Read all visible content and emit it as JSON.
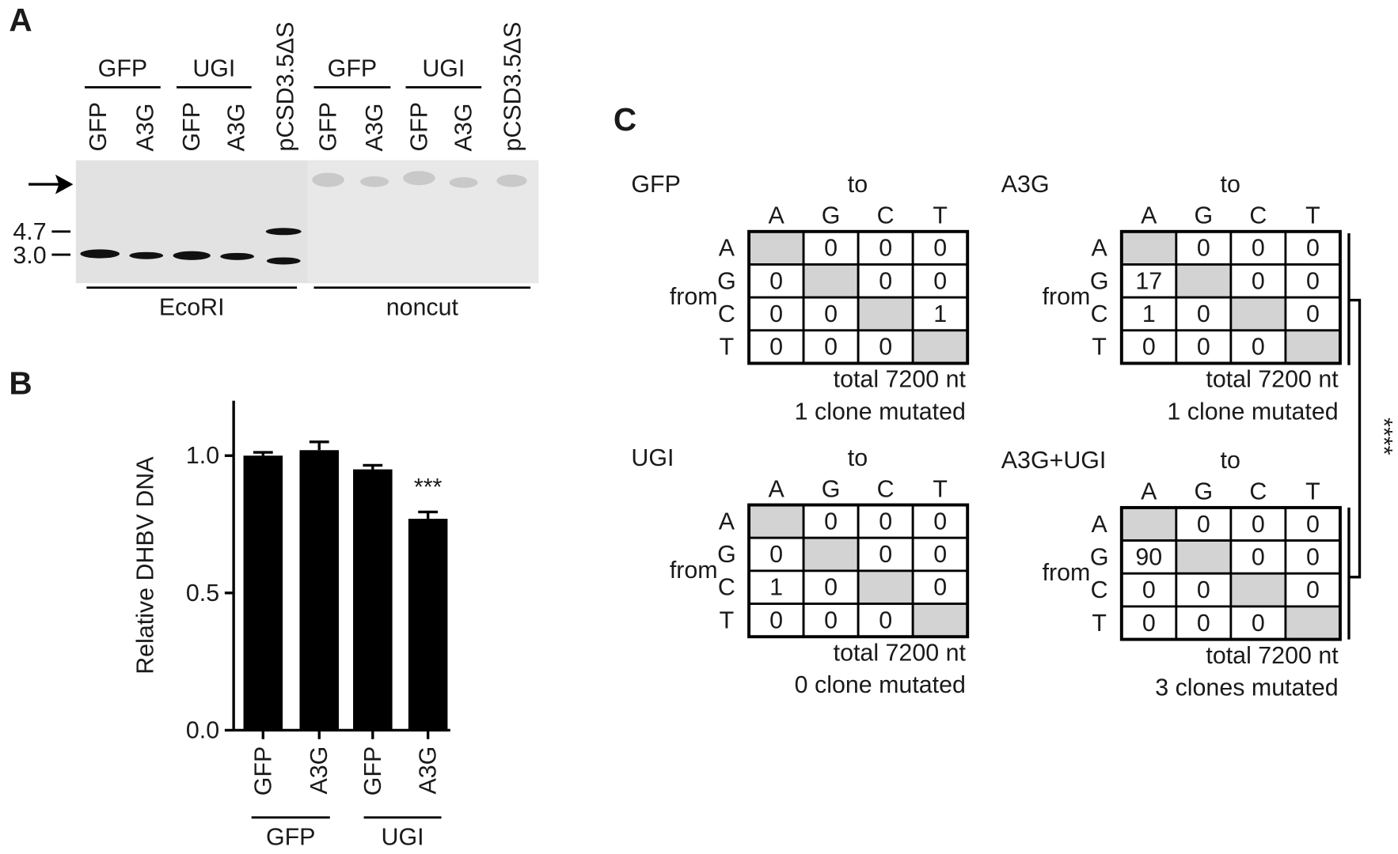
{
  "panel_a": {
    "label": "A",
    "groups": [
      "GFP",
      "UGI",
      "GFP",
      "UGI"
    ],
    "lanes": [
      "GFP",
      "A3G",
      "GFP",
      "A3G",
      "pCSD3.5ΔS",
      "GFP",
      "A3G",
      "GFP",
      "A3G",
      "pCSD3.5ΔS"
    ],
    "markers": [
      "4.7",
      "3.0"
    ],
    "digests": [
      "EcoRI",
      "noncut"
    ]
  },
  "chart_data": {
    "type": "bar",
    "panel_label": "B",
    "ylabel": "Relative DHBV DNA",
    "categories": [
      "GFP",
      "A3G",
      "GFP",
      "A3G"
    ],
    "group_labels": [
      "GFP",
      "UGI"
    ],
    "values": [
      1.0,
      1.02,
      0.95,
      0.77
    ],
    "errors": [
      0.012,
      0.03,
      0.015,
      0.025
    ],
    "color": "#000000",
    "annotation": "***",
    "ylim": [
      0,
      1.2
    ],
    "yticks": [
      {
        "value": 0,
        "label": "0.0"
      },
      0.5,
      {
        "value": 1,
        "label": "1.0"
      }
    ]
  },
  "panel_c": {
    "label": "C",
    "significance": "****",
    "tables": [
      {
        "title": "GFP",
        "to": "to",
        "from": "from",
        "columns": [
          "A",
          "G",
          "C",
          "T"
        ],
        "rows": [
          {
            "label": "A",
            "cells": [
              null,
              0,
              0,
              0
            ]
          },
          {
            "label": "G",
            "cells": [
              0,
              null,
              0,
              0
            ]
          },
          {
            "label": "C",
            "cells": [
              0,
              0,
              null,
              1
            ]
          },
          {
            "label": "T",
            "cells": [
              0,
              0,
              0,
              null
            ]
          }
        ],
        "total": "total 7200 nt",
        "clones": "1 clone mutated"
      },
      {
        "title": "A3G",
        "to": "to",
        "from": "from",
        "columns": [
          "A",
          "G",
          "C",
          "T"
        ],
        "rows": [
          {
            "label": "A",
            "cells": [
              null,
              0,
              0,
              0
            ]
          },
          {
            "label": "G",
            "cells": [
              17,
              null,
              0,
              0
            ]
          },
          {
            "label": "C",
            "cells": [
              1,
              0,
              null,
              0
            ]
          },
          {
            "label": "T",
            "cells": [
              0,
              0,
              0,
              null
            ]
          }
        ],
        "total": "total 7200 nt",
        "clones": "1 clone mutated"
      },
      {
        "title": "UGI",
        "to": "to",
        "from": "from",
        "columns": [
          "A",
          "G",
          "C",
          "T"
        ],
        "rows": [
          {
            "label": "A",
            "cells": [
              null,
              0,
              0,
              0
            ]
          },
          {
            "label": "G",
            "cells": [
              0,
              null,
              0,
              0
            ]
          },
          {
            "label": "C",
            "cells": [
              1,
              0,
              null,
              0
            ]
          },
          {
            "label": "T",
            "cells": [
              0,
              0,
              0,
              null
            ]
          }
        ],
        "total": "total 7200 nt",
        "clones": "0 clone mutated"
      },
      {
        "title": "A3G+UGI",
        "to": "to",
        "from": "from",
        "columns": [
          "A",
          "G",
          "C",
          "T"
        ],
        "rows": [
          {
            "label": "A",
            "cells": [
              null,
              0,
              0,
              0
            ]
          },
          {
            "label": "G",
            "cells": [
              90,
              null,
              0,
              0
            ]
          },
          {
            "label": "C",
            "cells": [
              0,
              0,
              null,
              0
            ]
          },
          {
            "label": "T",
            "cells": [
              0,
              0,
              0,
              null
            ]
          }
        ],
        "total": "total 7200 nt",
        "clones": "3 clones mutated"
      }
    ]
  }
}
